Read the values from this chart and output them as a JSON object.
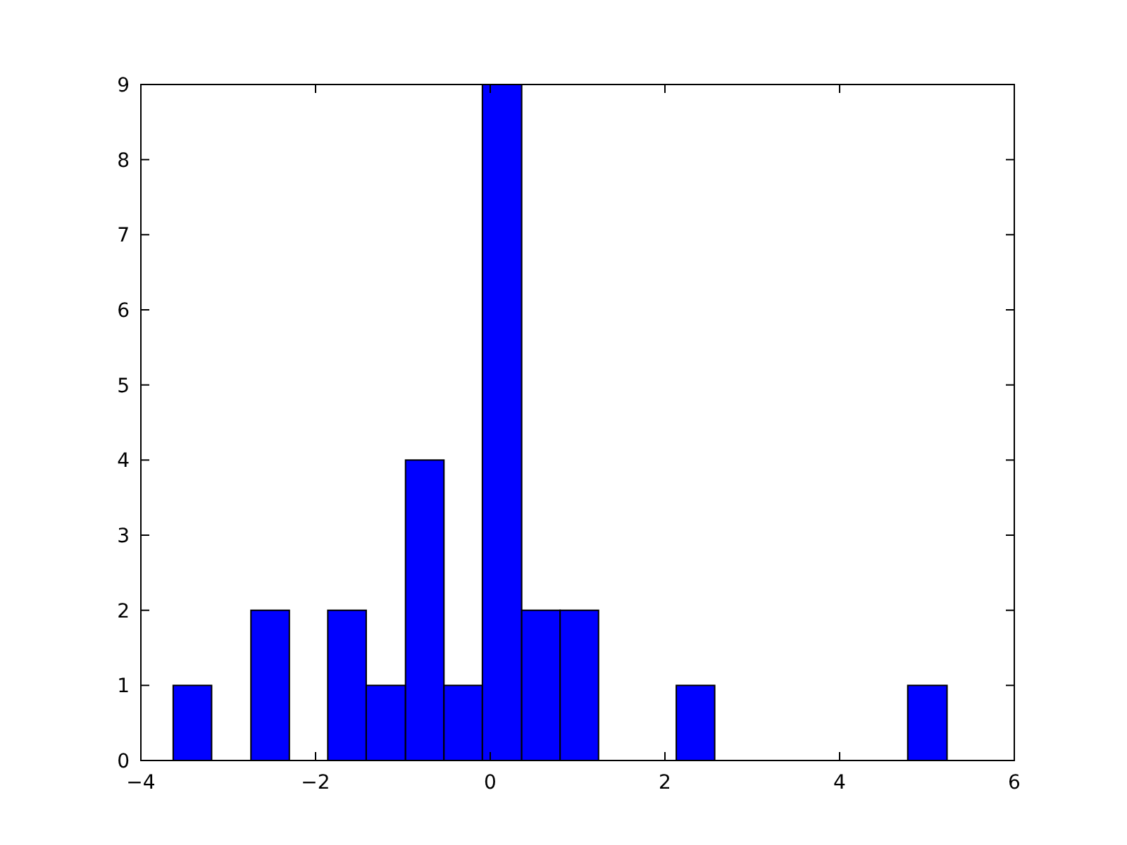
{
  "chart_data": {
    "type": "histogram",
    "color": "#0000ff",
    "bins": [
      -3.63,
      -3.19,
      -2.74,
      -2.3,
      -1.86,
      -1.42,
      -0.97,
      -0.53,
      -0.09,
      0.36,
      0.8,
      1.24,
      2.13,
      2.57,
      4.78,
      5.23
    ],
    "values": [
      1,
      0,
      2,
      0,
      2,
      1,
      4,
      1,
      9,
      2,
      2,
      0,
      1,
      0,
      1
    ],
    "xlim": [
      -4,
      6
    ],
    "xticks": [
      {
        "value": -4,
        "label": "−4"
      },
      {
        "value": -2,
        "label": "−2"
      },
      0,
      2,
      4,
      6
    ],
    "ylim": [
      0,
      9
    ],
    "yticks": [
      0,
      1,
      2,
      3,
      4,
      5,
      6,
      7,
      8,
      9
    ],
    "grid": false
  }
}
